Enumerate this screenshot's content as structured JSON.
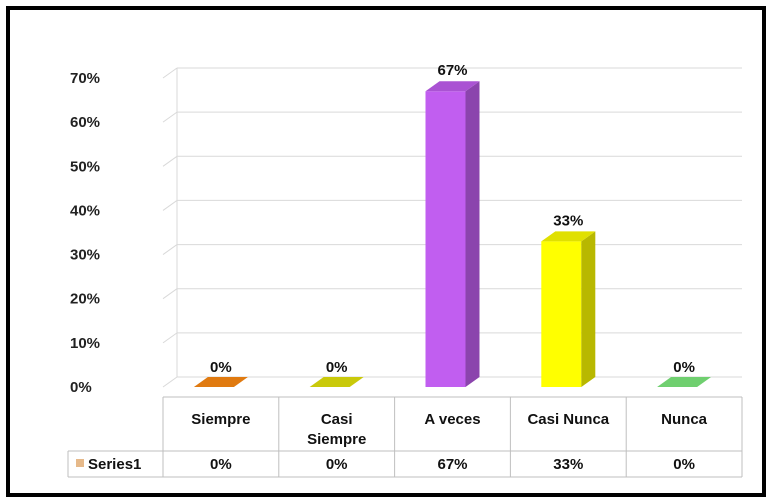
{
  "chart_data": {
    "type": "bar",
    "categories": [
      "Siempre",
      "Casi Siempre",
      "A veces",
      "Casi Nunca",
      "Nunca"
    ],
    "series": [
      {
        "name": "Series1",
        "values": [
          0,
          0,
          67,
          33,
          0
        ],
        "labels": [
          "0%",
          "0%",
          "67%",
          "33%",
          "0%"
        ],
        "colors": [
          "#e07a10",
          "#c9c90a",
          "#c15ef0",
          "#ffff00",
          "#6fcf6f"
        ]
      }
    ],
    "yticks": [
      "0%",
      "10%",
      "20%",
      "30%",
      "40%",
      "50%",
      "60%",
      "70%"
    ],
    "ylim": [
      0,
      70
    ],
    "grid": true,
    "data_table": true
  }
}
